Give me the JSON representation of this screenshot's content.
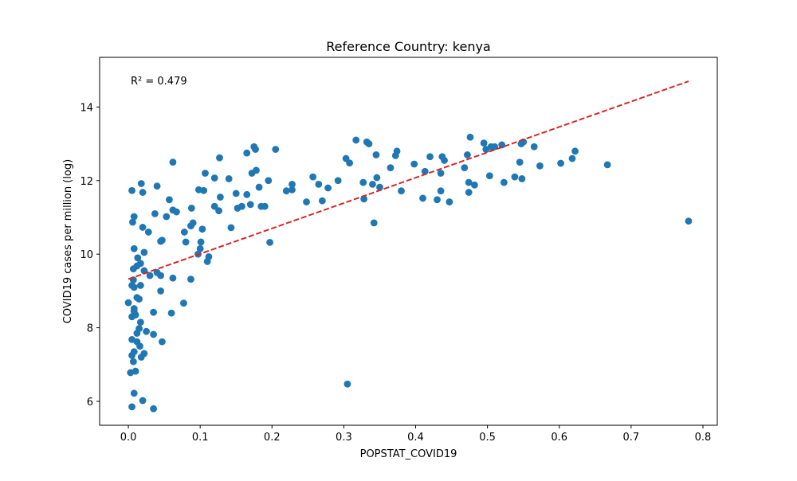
{
  "chart_data": {
    "type": "scatter",
    "title": "Reference Country: kenya",
    "xlabel": "POPSTAT_COVID19",
    "ylabel": "COVID19 cases per million (log)",
    "xlim": [
      -0.04,
      0.82
    ],
    "ylim": [
      5.35,
      15.35
    ],
    "xticks": [
      0.0,
      0.1,
      0.2,
      0.3,
      0.4,
      0.5,
      0.6,
      0.7,
      0.8
    ],
    "xtick_labels": [
      "0.0",
      "0.1",
      "0.2",
      "0.3",
      "0.4",
      "0.5",
      "0.6",
      "0.7",
      "0.8"
    ],
    "yticks": [
      6,
      8,
      10,
      12,
      14
    ],
    "ytick_labels": [
      "6",
      "8",
      "10",
      "12",
      "14"
    ],
    "grid": false,
    "point_color": "#1f77b4",
    "trend_color": "#d62728",
    "annotation": "R² = 0.479",
    "trendline": {
      "x": [
        0.0,
        0.78
      ],
      "y": [
        9.32,
        14.7
      ]
    },
    "series": [
      {
        "points": [
          [
            0.005,
            5.85
          ],
          [
            0.035,
            5.8
          ],
          [
            0.008,
            6.22
          ],
          [
            0.02,
            6.02
          ],
          [
            0.003,
            6.78
          ],
          [
            0.01,
            6.82
          ],
          [
            0.007,
            7.08
          ],
          [
            0.005,
            7.25
          ],
          [
            0.008,
            7.35
          ],
          [
            0.016,
            7.5
          ],
          [
            0.022,
            7.3
          ],
          [
            0.012,
            7.62
          ],
          [
            0.047,
            7.62
          ],
          [
            0.005,
            7.68
          ],
          [
            0.018,
            7.2
          ],
          [
            0.012,
            7.85
          ],
          [
            0.015,
            7.98
          ],
          [
            0.025,
            7.9
          ],
          [
            0.035,
            7.82
          ],
          [
            0.017,
            8.15
          ],
          [
            0.005,
            8.3
          ],
          [
            0.01,
            8.35
          ],
          [
            0.008,
            8.45
          ],
          [
            0.008,
            8.52
          ],
          [
            0.035,
            8.42
          ],
          [
            0.06,
            8.4
          ],
          [
            0.077,
            8.67
          ],
          [
            0.0,
            8.68
          ],
          [
            0.012,
            8.82
          ],
          [
            0.015,
            8.78
          ],
          [
            0.045,
            9.0
          ],
          [
            0.017,
            9.15
          ],
          [
            0.005,
            9.15
          ],
          [
            0.008,
            9.1
          ],
          [
            0.007,
            9.3
          ],
          [
            0.03,
            9.42
          ],
          [
            0.045,
            9.42
          ],
          [
            0.062,
            9.35
          ],
          [
            0.087,
            9.32
          ],
          [
            0.007,
            9.6
          ],
          [
            0.012,
            9.68
          ],
          [
            0.017,
            9.75
          ],
          [
            0.013,
            9.9
          ],
          [
            0.022,
            9.55
          ],
          [
            0.04,
            9.5
          ],
          [
            0.022,
            10.05
          ],
          [
            0.008,
            10.15
          ],
          [
            0.097,
            10.0
          ],
          [
            0.11,
            9.8
          ],
          [
            0.112,
            9.93
          ],
          [
            0.1,
            10.15
          ],
          [
            0.101,
            10.33
          ],
          [
            0.08,
            10.33
          ],
          [
            0.045,
            10.35
          ],
          [
            0.047,
            10.38
          ],
          [
            0.028,
            10.6
          ],
          [
            0.02,
            10.73
          ],
          [
            0.006,
            10.87
          ],
          [
            0.008,
            11.02
          ],
          [
            0.078,
            10.6
          ],
          [
            0.087,
            10.77
          ],
          [
            0.09,
            10.85
          ],
          [
            0.103,
            10.68
          ],
          [
            0.037,
            11.1
          ],
          [
            0.053,
            11.02
          ],
          [
            0.062,
            11.2
          ],
          [
            0.067,
            11.15
          ],
          [
            0.088,
            11.25
          ],
          [
            0.057,
            11.48
          ],
          [
            0.005,
            11.73
          ],
          [
            0.02,
            11.68
          ],
          [
            0.018,
            11.92
          ],
          [
            0.04,
            11.85
          ],
          [
            0.062,
            12.5
          ],
          [
            0.098,
            11.75
          ],
          [
            0.105,
            11.73
          ],
          [
            0.107,
            12.2
          ],
          [
            0.12,
            11.3
          ],
          [
            0.12,
            12.07
          ],
          [
            0.126,
            11.18
          ],
          [
            0.128,
            11.55
          ],
          [
            0.127,
            12.62
          ],
          [
            0.14,
            12.05
          ],
          [
            0.143,
            10.72
          ],
          [
            0.15,
            11.65
          ],
          [
            0.152,
            11.25
          ],
          [
            0.158,
            11.3
          ],
          [
            0.165,
            11.62
          ],
          [
            0.165,
            12.75
          ],
          [
            0.17,
            11.35
          ],
          [
            0.172,
            12.2
          ],
          [
            0.175,
            12.92
          ],
          [
            0.177,
            12.85
          ],
          [
            0.178,
            12.28
          ],
          [
            0.182,
            11.82
          ],
          [
            0.185,
            11.3
          ],
          [
            0.19,
            11.3
          ],
          [
            0.195,
            12.0
          ],
          [
            0.197,
            10.32
          ],
          [
            0.205,
            12.85
          ],
          [
            0.22,
            11.72
          ],
          [
            0.228,
            11.75
          ],
          [
            0.228,
            11.9
          ],
          [
            0.248,
            11.42
          ],
          [
            0.257,
            12.1
          ],
          [
            0.265,
            11.9
          ],
          [
            0.27,
            11.45
          ],
          [
            0.278,
            11.8
          ],
          [
            0.292,
            12.0
          ],
          [
            0.303,
            12.6
          ],
          [
            0.308,
            12.48
          ],
          [
            0.317,
            13.1
          ],
          [
            0.305,
            6.47
          ],
          [
            0.327,
            11.95
          ],
          [
            0.328,
            11.5
          ],
          [
            0.332,
            13.05
          ],
          [
            0.335,
            13.0
          ],
          [
            0.34,
            11.9
          ],
          [
            0.342,
            10.85
          ],
          [
            0.345,
            12.7
          ],
          [
            0.346,
            12.08
          ],
          [
            0.35,
            11.82
          ],
          [
            0.365,
            12.35
          ],
          [
            0.372,
            12.68
          ],
          [
            0.374,
            12.8
          ],
          [
            0.38,
            11.72
          ],
          [
            0.398,
            12.45
          ],
          [
            0.41,
            11.52
          ],
          [
            0.413,
            12.25
          ],
          [
            0.42,
            12.65
          ],
          [
            0.43,
            11.48
          ],
          [
            0.435,
            12.2
          ],
          [
            0.435,
            11.72
          ],
          [
            0.437,
            12.65
          ],
          [
            0.44,
            12.55
          ],
          [
            0.447,
            11.42
          ],
          [
            0.468,
            12.35
          ],
          [
            0.472,
            12.7
          ],
          [
            0.474,
            11.95
          ],
          [
            0.474,
            11.68
          ],
          [
            0.476,
            13.18
          ],
          [
            0.482,
            11.88
          ],
          [
            0.495,
            13.02
          ],
          [
            0.498,
            12.85
          ],
          [
            0.503,
            12.13
          ],
          [
            0.505,
            12.92
          ],
          [
            0.51,
            12.92
          ],
          [
            0.52,
            12.97
          ],
          [
            0.523,
            11.95
          ],
          [
            0.538,
            12.1
          ],
          [
            0.545,
            12.5
          ],
          [
            0.547,
            13.0
          ],
          [
            0.548,
            12.05
          ],
          [
            0.55,
            13.05
          ],
          [
            0.565,
            12.92
          ],
          [
            0.573,
            12.4
          ],
          [
            0.602,
            12.47
          ],
          [
            0.618,
            12.6
          ],
          [
            0.622,
            12.8
          ],
          [
            0.667,
            12.43
          ],
          [
            0.78,
            10.9
          ]
        ]
      }
    ]
  }
}
